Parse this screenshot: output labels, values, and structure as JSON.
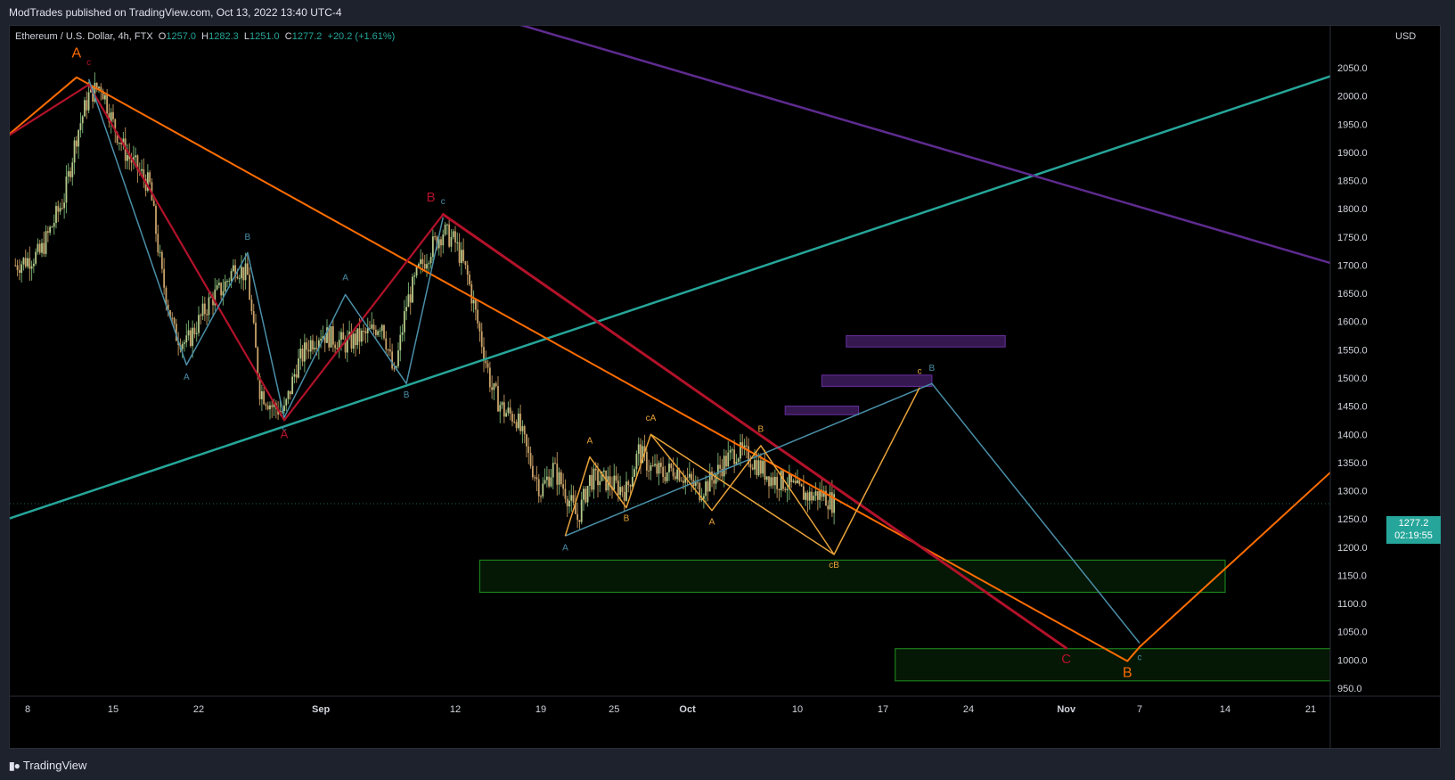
{
  "header": {
    "published_by": "ModTrades published on TradingView.com, Oct 13, 2022 13:40 UTC-4"
  },
  "legend": {
    "symbol": "Ethereum / U.S. Dollar, 4h, FTX",
    "open_label": "O",
    "open": "1257.0",
    "high_label": "H",
    "high": "1282.3",
    "low_label": "L",
    "low": "1251.0",
    "close_label": "C",
    "close": "1277.2",
    "change": "+20.2 (+1.61%)"
  },
  "price_axis": {
    "currency": "USD"
  },
  "last_price": {
    "price": "1277.2",
    "countdown": "02:19:55"
  },
  "footer": {
    "brand": "TradingView"
  },
  "colors": {
    "background": "#000000",
    "teal": "#26a69a",
    "orange": "#ff6d00",
    "red": "#b2122a",
    "purple": "#5e2b8f",
    "steelblue": "#4a8fa8",
    "gold": "#e8a33a",
    "zone_green": "#1b7d1b"
  },
  "chart_data": {
    "type": "candlestick-with-annotations",
    "symbol": "ETHUSD",
    "timeframe": "4h",
    "ylim": [
      940,
      2110
    ],
    "y_ticks": [
      2050,
      2000,
      1950,
      1900,
      1850,
      1800,
      1750,
      1700,
      1650,
      1600,
      1550,
      1500,
      1450,
      1400,
      1350,
      1300,
      1250,
      1200,
      1150,
      1100,
      1050,
      1000,
      950
    ],
    "y_tick_labels": [
      "2050.0",
      "2000.0",
      "1950.0",
      "1900.0",
      "1850.0",
      "1800.0",
      "1750.0",
      "1700.0",
      "1650.0",
      "1600.0",
      "1550.0",
      "1500.0",
      "1450.0",
      "1400.0",
      "1350.0",
      "1300.0",
      "1250.0",
      "1200.0",
      "1150.0",
      "1100.0",
      "1050.0",
      "1000.0",
      "950.0"
    ],
    "x_ticks": [
      {
        "label": "8",
        "date": "2022-08-08"
      },
      {
        "label": "15",
        "date": "2022-08-15"
      },
      {
        "label": "22",
        "date": "2022-08-22"
      },
      {
        "label": "Sep",
        "date": "2022-09-01"
      },
      {
        "label": "12",
        "date": "2022-09-12"
      },
      {
        "label": "19",
        "date": "2022-09-19"
      },
      {
        "label": "25",
        "date": "2022-09-25"
      },
      {
        "label": "Oct",
        "date": "2022-10-01"
      },
      {
        "label": "10",
        "date": "2022-10-10"
      },
      {
        "label": "17",
        "date": "2022-10-17"
      },
      {
        "label": "24",
        "date": "2022-10-24"
      },
      {
        "label": "Nov",
        "date": "2022-11-01"
      },
      {
        "label": "7",
        "date": "2022-11-07"
      },
      {
        "label": "14",
        "date": "2022-11-14"
      },
      {
        "label": "21",
        "date": "2022-11-21"
      }
    ],
    "price_path": [
      {
        "date": "2022-08-07",
        "price": 1700
      },
      {
        "date": "2022-08-09",
        "price": 1720
      },
      {
        "date": "2022-08-11",
        "price": 1820
      },
      {
        "date": "2022-08-12",
        "price": 1930
      },
      {
        "date": "2022-08-13",
        "price": 2000
      },
      {
        "date": "2022-08-14",
        "price": 2020
      },
      {
        "date": "2022-08-15",
        "price": 1950
      },
      {
        "date": "2022-08-16",
        "price": 1900
      },
      {
        "date": "2022-08-17",
        "price": 1870
      },
      {
        "date": "2022-08-18",
        "price": 1840
      },
      {
        "date": "2022-08-19",
        "price": 1680
      },
      {
        "date": "2022-08-20",
        "price": 1580
      },
      {
        "date": "2022-08-21",
        "price": 1560
      },
      {
        "date": "2022-08-22",
        "price": 1600
      },
      {
        "date": "2022-08-23",
        "price": 1640
      },
      {
        "date": "2022-08-24",
        "price": 1660
      },
      {
        "date": "2022-08-25",
        "price": 1700
      },
      {
        "date": "2022-08-26",
        "price": 1680
      },
      {
        "date": "2022-08-27",
        "price": 1480
      },
      {
        "date": "2022-08-28",
        "price": 1450
      },
      {
        "date": "2022-08-29",
        "price": 1440
      },
      {
        "date": "2022-08-30",
        "price": 1520
      },
      {
        "date": "2022-08-31",
        "price": 1560
      },
      {
        "date": "2022-09-01",
        "price": 1580
      },
      {
        "date": "2022-09-02",
        "price": 1570
      },
      {
        "date": "2022-09-03",
        "price": 1560
      },
      {
        "date": "2022-09-04",
        "price": 1570
      },
      {
        "date": "2022-09-05",
        "price": 1580
      },
      {
        "date": "2022-09-06",
        "price": 1600
      },
      {
        "date": "2022-09-07",
        "price": 1500
      },
      {
        "date": "2022-09-08",
        "price": 1630
      },
      {
        "date": "2022-09-09",
        "price": 1690
      },
      {
        "date": "2022-09-10",
        "price": 1730
      },
      {
        "date": "2022-09-11",
        "price": 1760
      },
      {
        "date": "2022-09-12",
        "price": 1740
      },
      {
        "date": "2022-09-13",
        "price": 1680
      },
      {
        "date": "2022-09-14",
        "price": 1580
      },
      {
        "date": "2022-09-15",
        "price": 1480
      },
      {
        "date": "2022-09-16",
        "price": 1440
      },
      {
        "date": "2022-09-17",
        "price": 1430
      },
      {
        "date": "2022-09-18",
        "price": 1360
      },
      {
        "date": "2022-09-19",
        "price": 1300
      },
      {
        "date": "2022-09-20",
        "price": 1340
      },
      {
        "date": "2022-09-21",
        "price": 1300
      },
      {
        "date": "2022-09-22",
        "price": 1250
      },
      {
        "date": "2022-09-23",
        "price": 1320
      },
      {
        "date": "2022-09-24",
        "price": 1320
      },
      {
        "date": "2022-09-25",
        "price": 1310
      },
      {
        "date": "2022-09-26",
        "price": 1300
      },
      {
        "date": "2022-09-27",
        "price": 1370
      },
      {
        "date": "2022-09-28",
        "price": 1340
      },
      {
        "date": "2022-09-29",
        "price": 1330
      },
      {
        "date": "2022-09-30",
        "price": 1340
      },
      {
        "date": "2022-10-01",
        "price": 1320
      },
      {
        "date": "2022-10-02",
        "price": 1300
      },
      {
        "date": "2022-10-03",
        "price": 1320
      },
      {
        "date": "2022-10-04",
        "price": 1350
      },
      {
        "date": "2022-10-05",
        "price": 1370
      },
      {
        "date": "2022-10-06",
        "price": 1360
      },
      {
        "date": "2022-10-07",
        "price": 1340
      },
      {
        "date": "2022-10-08",
        "price": 1320
      },
      {
        "date": "2022-10-09",
        "price": 1315
      },
      {
        "date": "2022-10-10",
        "price": 1300
      },
      {
        "date": "2022-10-11",
        "price": 1290
      },
      {
        "date": "2022-10-12",
        "price": 1295
      },
      {
        "date": "2022-10-13",
        "price": 1277
      }
    ],
    "trendlines": [
      {
        "color": "#26a69a",
        "from": {
          "date": "2022-08-05",
          "price": 1240
        },
        "to": {
          "date": "2022-11-24",
          "price": 2045
        }
      },
      {
        "color": "#5e2b8f",
        "from": {
          "date": "2022-09-12",
          "price": 2160
        },
        "to": {
          "date": "2022-11-24",
          "price": 1695
        }
      },
      {
        "color": "#ff6d00",
        "from": {
          "date": "2022-08-12",
          "price": 2033
        },
        "to": {
          "date": "2022-11-06",
          "price": 998
        }
      },
      {
        "color": "#b2122a",
        "from": {
          "date": "2022-09-11",
          "price": 1790
        },
        "to": {
          "date": "2022-11-01",
          "price": 1021
        }
      }
    ],
    "wave_paths": [
      {
        "color": "#ff6d00",
        "points": [
          {
            "date": "2022-08-05",
            "price": 1905
          },
          {
            "date": "2022-08-12",
            "price": 2033
          }
        ]
      },
      {
        "color": "#ff6d00",
        "points": [
          {
            "date": "2022-11-06",
            "price": 998
          },
          {
            "date": "2022-11-07",
            "price": 1023
          },
          {
            "date": "2022-11-24",
            "price": 1360
          }
        ]
      },
      {
        "color": "#b2122a",
        "points": [
          {
            "date": "2022-08-05",
            "price": 1910
          },
          {
            "date": "2022-08-13",
            "price": 2020
          },
          {
            "date": "2022-08-29",
            "price": 1425
          },
          {
            "date": "2022-09-11",
            "price": 1790
          }
        ]
      },
      {
        "color": "#4a8fa8",
        "points": [
          {
            "date": "2022-08-13",
            "price": 2030
          },
          {
            "date": "2022-08-21",
            "price": 1523
          },
          {
            "date": "2022-08-26",
            "price": 1722
          },
          {
            "date": "2022-08-29",
            "price": 1430
          },
          {
            "date": "2022-09-03",
            "price": 1648
          },
          {
            "date": "2022-09-08",
            "price": 1490
          },
          {
            "date": "2022-09-11",
            "price": 1785
          }
        ]
      },
      {
        "color": "#4a8fa8",
        "points": [
          {
            "date": "2022-09-21",
            "price": 1220
          },
          {
            "date": "2022-10-21",
            "price": 1490
          },
          {
            "date": "2022-11-07",
            "price": 1030
          }
        ]
      },
      {
        "color": "#e8a33a",
        "points": [
          {
            "date": "2022-09-21",
            "price": 1220
          },
          {
            "date": "2022-09-23",
            "price": 1360
          },
          {
            "date": "2022-09-26",
            "price": 1270
          },
          {
            "date": "2022-09-28",
            "price": 1400
          },
          {
            "date": "2022-10-03",
            "price": 1265
          },
          {
            "date": "2022-10-07",
            "price": 1380
          },
          {
            "date": "2022-10-13",
            "price": 1187
          },
          {
            "date": "2022-10-20",
            "price": 1483
          }
        ]
      },
      {
        "color": "#e8a33a",
        "points": [
          {
            "date": "2022-09-28",
            "price": 1400
          },
          {
            "date": "2022-10-13",
            "price": 1187
          }
        ]
      }
    ],
    "zones": [
      {
        "color": "#5e2b8f",
        "from_date": "2022-10-14",
        "to_date": "2022-10-27",
        "low": 1555,
        "high": 1575
      },
      {
        "color": "#5e2b8f",
        "from_date": "2022-10-12",
        "to_date": "2022-10-21",
        "low": 1485,
        "high": 1505
      },
      {
        "color": "#5e2b8f",
        "from_date": "2022-10-09",
        "to_date": "2022-10-15",
        "low": 1435,
        "high": 1450
      },
      {
        "color": "#1b7d1b",
        "from_date": "2022-09-14",
        "to_date": "2022-11-14",
        "low": 1120,
        "high": 1177
      },
      {
        "color": "#1b7d1b",
        "from_date": "2022-10-18",
        "to_date": "2022-11-24",
        "low": 963,
        "high": 1020
      }
    ],
    "wave_labels": [
      {
        "text": "A",
        "color": "#ff6d00",
        "date": "2022-08-12",
        "price": 2068,
        "size": 16
      },
      {
        "text": "c",
        "color": "#b2122a",
        "date": "2022-08-13",
        "price": 2055,
        "size": 10
      },
      {
        "text": "B",
        "color": "#b2122a",
        "date": "2022-09-10",
        "price": 1813,
        "size": 15
      },
      {
        "text": "c",
        "color": "#4a8fa8",
        "date": "2022-09-11",
        "price": 1808,
        "size": 10
      },
      {
        "text": "B",
        "color": "#4a8fa8",
        "date": "2022-08-26",
        "price": 1745,
        "size": 10
      },
      {
        "text": "A",
        "color": "#4a8fa8",
        "date": "2022-08-21",
        "price": 1497,
        "size": 10
      },
      {
        "text": "A",
        "color": "#4a8fa8",
        "date": "2022-09-03",
        "price": 1673,
        "size": 10
      },
      {
        "text": "c",
        "color": "#4a8fa8",
        "date": "2022-08-29",
        "price": 1407,
        "size": 10
      },
      {
        "text": "A",
        "color": "#b2122a",
        "date": "2022-08-29",
        "price": 1393,
        "size": 13
      },
      {
        "text": "B",
        "color": "#4a8fa8",
        "date": "2022-09-08",
        "price": 1465,
        "size": 10
      },
      {
        "text": "A",
        "color": "#4a8fa8",
        "date": "2022-09-21",
        "price": 1194,
        "size": 10
      },
      {
        "text": "A",
        "color": "#e8a33a",
        "date": "2022-09-23",
        "price": 1384,
        "size": 10
      },
      {
        "text": "B",
        "color": "#e8a33a",
        "date": "2022-09-26",
        "price": 1246,
        "size": 10
      },
      {
        "text": "cA",
        "color": "#e8a33a",
        "date": "2022-09-28",
        "price": 1424,
        "size": 10
      },
      {
        "text": "A",
        "color": "#e8a33a",
        "date": "2022-10-03",
        "price": 1240,
        "size": 10
      },
      {
        "text": "B",
        "color": "#e8a33a",
        "date": "2022-10-07",
        "price": 1404,
        "size": 10
      },
      {
        "text": "cB",
        "color": "#e8a33a",
        "date": "2022-10-13",
        "price": 1163,
        "size": 10
      },
      {
        "text": "c",
        "color": "#e8a33a",
        "date": "2022-10-20",
        "price": 1507,
        "size": 10
      },
      {
        "text": "B",
        "color": "#4a8fa8",
        "date": "2022-10-21",
        "price": 1513,
        "size": 10
      },
      {
        "text": "C",
        "color": "#b2122a",
        "date": "2022-11-01",
        "price": 994,
        "size": 15
      },
      {
        "text": "c",
        "color": "#4a8fa8",
        "date": "2022-11-07",
        "price": 1000,
        "size": 10
      },
      {
        "text": "B",
        "color": "#ff6d00",
        "date": "2022-11-06",
        "price": 970,
        "size": 16
      }
    ]
  }
}
